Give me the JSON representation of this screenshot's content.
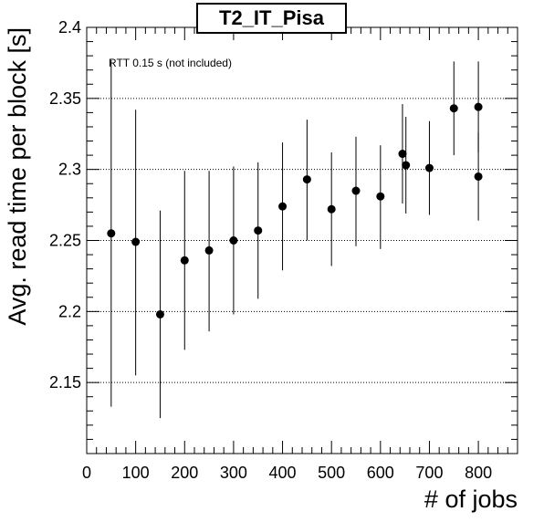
{
  "chart_data": {
    "type": "scatter",
    "title": "T2_IT_Pisa",
    "annotation": "RTT 0.15 s (not included)",
    "xlabel": "# of jobs",
    "ylabel": "Avg. read time per block [s]",
    "xlim": [
      0,
      880
    ],
    "ylim": [
      2.1,
      2.4
    ],
    "x_ticks": [
      0,
      100,
      200,
      300,
      400,
      500,
      600,
      700,
      800
    ],
    "y_ticks": [
      2.15,
      2.2,
      2.25,
      2.3,
      2.35,
      2.4
    ],
    "grid_y": true,
    "grid_x": false,
    "series": [
      {
        "points": [
          {
            "x": 50,
            "y": 2.255,
            "ylow": 2.133,
            "yhigh": 2.377
          },
          {
            "x": 100,
            "y": 2.249,
            "ylow": 2.155,
            "yhigh": 2.342
          },
          {
            "x": 150,
            "y": 2.198,
            "ylow": 2.125,
            "yhigh": 2.271
          },
          {
            "x": 200,
            "y": 2.236,
            "ylow": 2.173,
            "yhigh": 2.299
          },
          {
            "x": 250,
            "y": 2.243,
            "ylow": 2.186,
            "yhigh": 2.299
          },
          {
            "x": 300,
            "y": 2.25,
            "ylow": 2.198,
            "yhigh": 2.302
          },
          {
            "x": 350,
            "y": 2.257,
            "ylow": 2.209,
            "yhigh": 2.305
          },
          {
            "x": 400,
            "y": 2.274,
            "ylow": 2.229,
            "yhigh": 2.319
          },
          {
            "x": 450,
            "y": 2.293,
            "ylow": 2.25,
            "yhigh": 2.335
          },
          {
            "x": 500,
            "y": 2.272,
            "ylow": 2.232,
            "yhigh": 2.312
          },
          {
            "x": 550,
            "y": 2.285,
            "ylow": 2.246,
            "yhigh": 2.323
          },
          {
            "x": 600,
            "y": 2.281,
            "ylow": 2.244,
            "yhigh": 2.317
          },
          {
            "x": 645,
            "y": 2.311,
            "ylow": 2.276,
            "yhigh": 2.346
          },
          {
            "x": 652,
            "y": 2.303,
            "ylow": 2.269,
            "yhigh": 2.337
          },
          {
            "x": 700,
            "y": 2.301,
            "ylow": 2.268,
            "yhigh": 2.334
          },
          {
            "x": 750,
            "y": 2.343,
            "ylow": 2.31,
            "yhigh": 2.376
          },
          {
            "x": 800,
            "y": 2.344,
            "ylow": 2.312,
            "yhigh": 2.376
          },
          {
            "x": 800,
            "y": 2.295,
            "ylow": 2.264,
            "yhigh": 2.326
          }
        ]
      }
    ]
  }
}
